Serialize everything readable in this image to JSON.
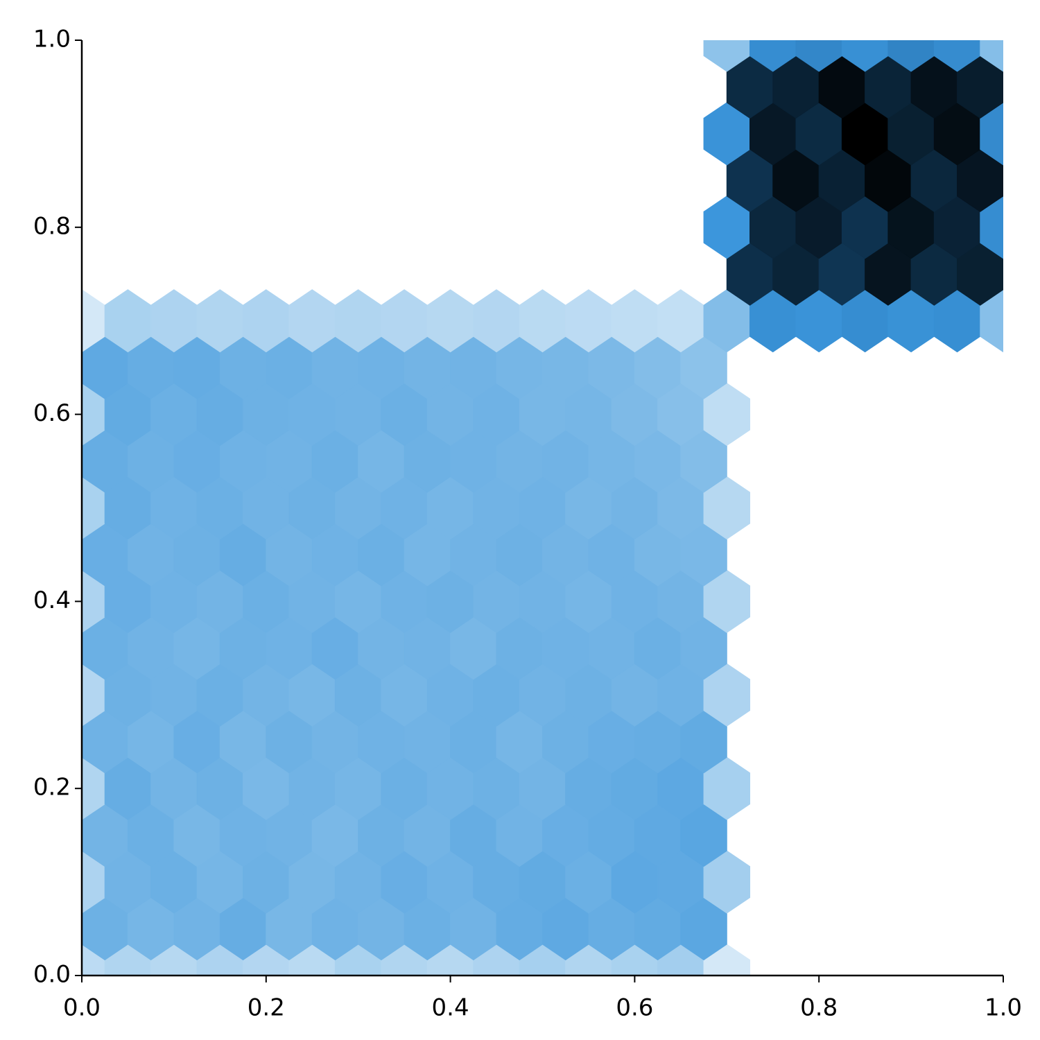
{
  "chart_data": {
    "type": "hexbin",
    "xlim": [
      0,
      1
    ],
    "ylim": [
      0,
      1
    ],
    "xticks": [
      {
        "value": 0,
        "label": "0.0"
      },
      {
        "value": 0.2,
        "label": "0.2"
      },
      {
        "value": 0.4,
        "label": "0.4"
      },
      {
        "value": 0.6,
        "label": "0.6"
      },
      {
        "value": 0.8,
        "label": "0.8"
      },
      {
        "value": 1,
        "label": "1.0"
      }
    ],
    "yticks": [
      {
        "value": 0,
        "label": "0.0"
      },
      {
        "value": 0.2,
        "label": "0.2"
      },
      {
        "value": 0.4,
        "label": "0.4"
      },
      {
        "value": 0.6,
        "label": "0.6"
      },
      {
        "value": 0.8,
        "label": "0.8"
      },
      {
        "value": 1,
        "label": "1.0"
      }
    ],
    "colormap": [
      "#ffffff",
      "#8ec3ea",
      "#3c96dc",
      "#1a5f96",
      "#0f3553",
      "#000000"
    ],
    "counts": [
      [
        22,
        26,
        24,
        27,
        25,
        23,
        28,
        26,
        24,
        27,
        29,
        26,
        28,
        30,
        14,
        null,
        null,
        null,
        null,
        null,
        null
      ],
      [
        52,
        48,
        50,
        55,
        47,
        51,
        49,
        53,
        50,
        56,
        58,
        55,
        57,
        60,
        null,
        null,
        null,
        null,
        null,
        null,
        null
      ],
      [
        27,
        50,
        53,
        48,
        52,
        47,
        50,
        54,
        51,
        55,
        57,
        53,
        59,
        58,
        30,
        null,
        null,
        null,
        null,
        null,
        null
      ],
      [
        49,
        53,
        47,
        51,
        50,
        46,
        52,
        49,
        55,
        50,
        54,
        56,
        58,
        61,
        null,
        null,
        null,
        null,
        null,
        null,
        null
      ],
      [
        26,
        55,
        49,
        52,
        46,
        50,
        48,
        53,
        50,
        52,
        49,
        55,
        57,
        59,
        29,
        null,
        null,
        null,
        null,
        null,
        null
      ],
      [
        51,
        48,
        54,
        47,
        52,
        49,
        51,
        50,
        53,
        48,
        52,
        54,
        55,
        57,
        null,
        null,
        null,
        null,
        null,
        null,
        null
      ],
      [
        25,
        52,
        50,
        53,
        49,
        47,
        52,
        48,
        51,
        53,
        50,
        52,
        49,
        51,
        27,
        null,
        null,
        null,
        null,
        null,
        null
      ],
      [
        53,
        50,
        48,
        52,
        51,
        54,
        49,
        50,
        47,
        52,
        51,
        50,
        53,
        50,
        null,
        null,
        null,
        null,
        null,
        null,
        null
      ],
      [
        27,
        54,
        51,
        49,
        53,
        50,
        48,
        51,
        52,
        49,
        50,
        48,
        51,
        49,
        26,
        null,
        null,
        null,
        null,
        null,
        null
      ],
      [
        54,
        50,
        52,
        55,
        49,
        51,
        53,
        48,
        50,
        52,
        49,
        51,
        47,
        46,
        null,
        null,
        null,
        null,
        null,
        null,
        null
      ],
      [
        28,
        55,
        51,
        53,
        50,
        52,
        49,
        51,
        48,
        50,
        51,
        47,
        49,
        45,
        24,
        null,
        null,
        null,
        null,
        null,
        null
      ],
      [
        55,
        52,
        54,
        51,
        50,
        53,
        48,
        52,
        51,
        49,
        50,
        48,
        46,
        42,
        null,
        null,
        null,
        null,
        null,
        null,
        null
      ],
      [
        28,
        57,
        53,
        55,
        52,
        51,
        50,
        53,
        49,
        51,
        47,
        48,
        44,
        40,
        21,
        null,
        null,
        null,
        null,
        null,
        null
      ],
      [
        58,
        55,
        56,
        52,
        53,
        50,
        51,
        49,
        50,
        48,
        47,
        45,
        42,
        38,
        null,
        null,
        null,
        null,
        null,
        null,
        null
      ],
      [
        14,
        28,
        27,
        26,
        27,
        25,
        26,
        25,
        24,
        25,
        23,
        22,
        21,
        20,
        42,
        78,
        76,
        80,
        77,
        79,
        40
      ],
      [
        null,
        null,
        null,
        null,
        null,
        null,
        null,
        null,
        null,
        null,
        null,
        null,
        null,
        null,
        152,
        160,
        148,
        171,
        156,
        163,
        null
      ],
      [
        null,
        null,
        null,
        null,
        null,
        null,
        null,
        null,
        null,
        null,
        null,
        null,
        null,
        null,
        74,
        158,
        166,
        150,
        172,
        161,
        80
      ],
      [
        null,
        null,
        null,
        null,
        null,
        null,
        null,
        null,
        null,
        null,
        null,
        null,
        null,
        null,
        150,
        175,
        162,
        180,
        158,
        170,
        null
      ],
      [
        null,
        null,
        null,
        null,
        null,
        null,
        null,
        null,
        null,
        null,
        null,
        null,
        null,
        null,
        76,
        168,
        155,
        185,
        163,
        176,
        82
      ],
      [
        null,
        null,
        null,
        null,
        null,
        null,
        null,
        null,
        null,
        null,
        null,
        null,
        null,
        null,
        155,
        162,
        178,
        160,
        173,
        165,
        null
      ],
      [
        null,
        null,
        null,
        null,
        null,
        null,
        null,
        null,
        null,
        null,
        null,
        null,
        null,
        null,
        37,
        80,
        84,
        78,
        86,
        81,
        41
      ]
    ]
  }
}
